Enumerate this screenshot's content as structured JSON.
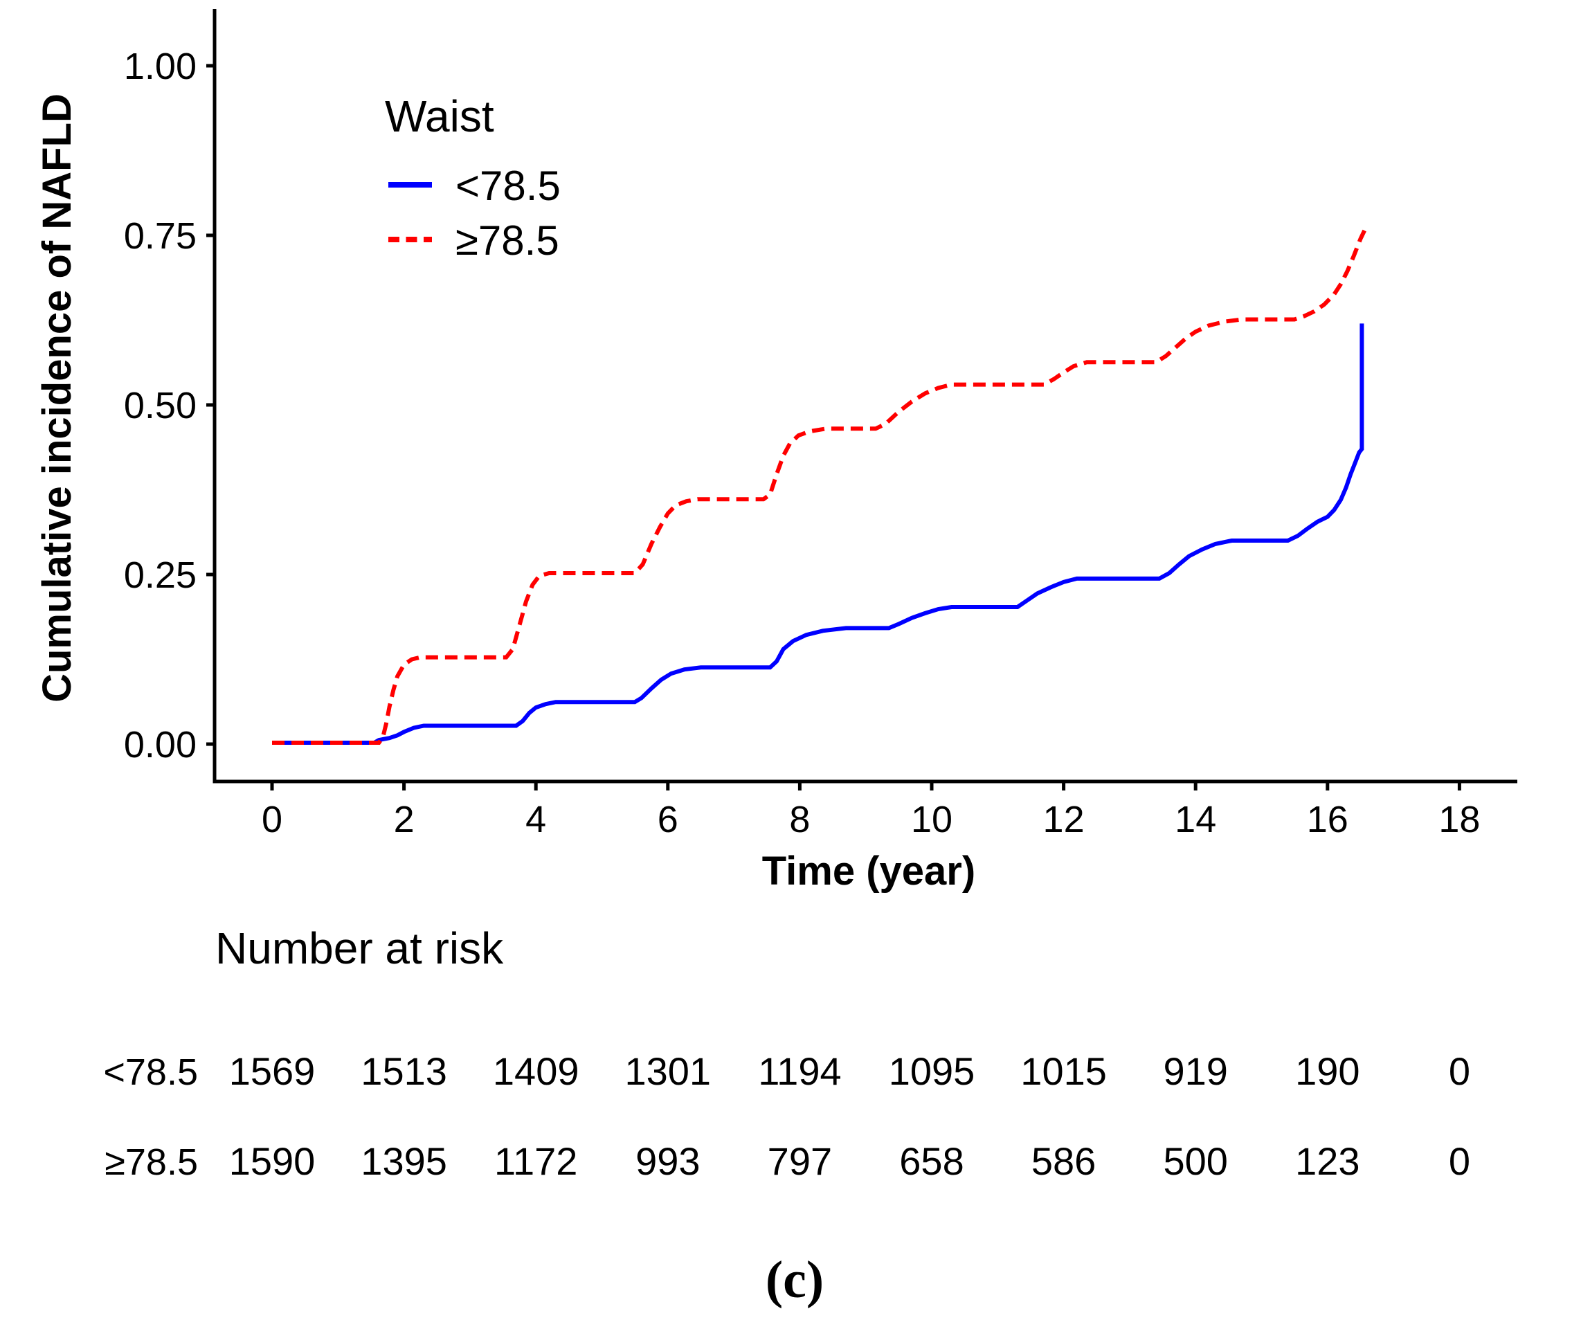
{
  "figure": {
    "caption": "(c)",
    "background_color": "#FFFFFF",
    "axis_color": "#000000"
  },
  "chart_data": {
    "type": "line",
    "subtype": "kaplan-meier-cumulative-incidence",
    "title": "",
    "xlabel": "Time (year)",
    "ylabel": "Cumulative incidence of NAFLD",
    "xlim": [
      0,
      18
    ],
    "ylim": [
      0,
      1
    ],
    "x_ticks": [
      0,
      2,
      4,
      6,
      8,
      10,
      12,
      14,
      16,
      18
    ],
    "y_ticks": [
      {
        "value": 0.0,
        "label": "0.00"
      },
      {
        "value": 0.25,
        "label": "0.25"
      },
      {
        "value": 0.5,
        "label": "0.50"
      },
      {
        "value": 0.75,
        "label": "0.75"
      },
      {
        "value": 1.0,
        "label": "1.00"
      }
    ],
    "grid": false,
    "legend": {
      "title": "Waist",
      "position": "top-left-inside",
      "items": [
        {
          "label": "<78.5",
          "color": "#0000FF",
          "line_style": "solid"
        },
        {
          "label": "≥78.5",
          "color": "#FF0000",
          "line_style": "dashed"
        }
      ]
    },
    "series": [
      {
        "name": "<78.5",
        "color": "#0000FF",
        "line_style": "solid",
        "points": [
          [
            0,
            0.002
          ],
          [
            1.55,
            0.002
          ],
          [
            1.62,
            0.006
          ],
          [
            1.78,
            0.009
          ],
          [
            1.9,
            0.013
          ],
          [
            2.0,
            0.018
          ],
          [
            2.15,
            0.024
          ],
          [
            2.3,
            0.027
          ],
          [
            3.7,
            0.027
          ],
          [
            3.8,
            0.034
          ],
          [
            3.9,
            0.046
          ],
          [
            4.0,
            0.054
          ],
          [
            4.15,
            0.059
          ],
          [
            4.3,
            0.062
          ],
          [
            5.5,
            0.062
          ],
          [
            5.6,
            0.068
          ],
          [
            5.75,
            0.082
          ],
          [
            5.9,
            0.095
          ],
          [
            6.05,
            0.104
          ],
          [
            6.25,
            0.11
          ],
          [
            6.5,
            0.113
          ],
          [
            7.55,
            0.113
          ],
          [
            7.65,
            0.122
          ],
          [
            7.75,
            0.14
          ],
          [
            7.9,
            0.152
          ],
          [
            8.1,
            0.161
          ],
          [
            8.35,
            0.167
          ],
          [
            8.7,
            0.171
          ],
          [
            9.35,
            0.171
          ],
          [
            9.5,
            0.177
          ],
          [
            9.7,
            0.186
          ],
          [
            9.9,
            0.193
          ],
          [
            10.1,
            0.199
          ],
          [
            10.3,
            0.202
          ],
          [
            11.3,
            0.202
          ],
          [
            11.45,
            0.212
          ],
          [
            11.6,
            0.222
          ],
          [
            11.8,
            0.231
          ],
          [
            12.0,
            0.239
          ],
          [
            12.2,
            0.244
          ],
          [
            13.45,
            0.244
          ],
          [
            13.6,
            0.252
          ],
          [
            13.75,
            0.265
          ],
          [
            13.9,
            0.277
          ],
          [
            14.1,
            0.287
          ],
          [
            14.3,
            0.295
          ],
          [
            14.55,
            0.3
          ],
          [
            15.4,
            0.3
          ],
          [
            15.55,
            0.307
          ],
          [
            15.7,
            0.318
          ],
          [
            15.85,
            0.328
          ],
          [
            16.0,
            0.335
          ],
          [
            16.1,
            0.345
          ],
          [
            16.2,
            0.36
          ],
          [
            16.28,
            0.378
          ],
          [
            16.35,
            0.398
          ],
          [
            16.42,
            0.415
          ],
          [
            16.48,
            0.43
          ],
          [
            16.52,
            0.435
          ],
          [
            16.52,
            0.62
          ]
        ]
      },
      {
        "name": "≥78.5",
        "color": "#FF0000",
        "line_style": "dashed",
        "points": [
          [
            0,
            0.002
          ],
          [
            1.62,
            0.002
          ],
          [
            1.68,
            0.01
          ],
          [
            1.73,
            0.03
          ],
          [
            1.78,
            0.055
          ],
          [
            1.84,
            0.08
          ],
          [
            1.9,
            0.1
          ],
          [
            2.0,
            0.117
          ],
          [
            2.12,
            0.125
          ],
          [
            2.25,
            0.128
          ],
          [
            3.55,
            0.128
          ],
          [
            3.65,
            0.14
          ],
          [
            3.75,
            0.175
          ],
          [
            3.85,
            0.21
          ],
          [
            3.95,
            0.235
          ],
          [
            4.05,
            0.248
          ],
          [
            4.2,
            0.252
          ],
          [
            5.5,
            0.252
          ],
          [
            5.62,
            0.265
          ],
          [
            5.75,
            0.295
          ],
          [
            5.88,
            0.32
          ],
          [
            6.0,
            0.34
          ],
          [
            6.12,
            0.352
          ],
          [
            6.28,
            0.358
          ],
          [
            6.45,
            0.361
          ],
          [
            7.45,
            0.361
          ],
          [
            7.55,
            0.368
          ],
          [
            7.65,
            0.398
          ],
          [
            7.75,
            0.425
          ],
          [
            7.85,
            0.443
          ],
          [
            7.98,
            0.455
          ],
          [
            8.15,
            0.461
          ],
          [
            8.4,
            0.465
          ],
          [
            9.15,
            0.465
          ],
          [
            9.3,
            0.472
          ],
          [
            9.5,
            0.49
          ],
          [
            9.7,
            0.505
          ],
          [
            9.9,
            0.517
          ],
          [
            10.1,
            0.525
          ],
          [
            10.3,
            0.53
          ],
          [
            11.7,
            0.53
          ],
          [
            11.85,
            0.538
          ],
          [
            12.0,
            0.548
          ],
          [
            12.15,
            0.557
          ],
          [
            12.35,
            0.563
          ],
          [
            13.4,
            0.563
          ],
          [
            13.55,
            0.572
          ],
          [
            13.7,
            0.585
          ],
          [
            13.85,
            0.598
          ],
          [
            14.0,
            0.608
          ],
          [
            14.2,
            0.617
          ],
          [
            14.45,
            0.623
          ],
          [
            14.7,
            0.626
          ],
          [
            15.5,
            0.626
          ],
          [
            15.65,
            0.631
          ],
          [
            15.8,
            0.638
          ],
          [
            15.95,
            0.648
          ],
          [
            16.1,
            0.663
          ],
          [
            16.2,
            0.678
          ],
          [
            16.3,
            0.697
          ],
          [
            16.4,
            0.72
          ],
          [
            16.5,
            0.745
          ],
          [
            16.56,
            0.757
          ]
        ]
      }
    ]
  },
  "risk_table": {
    "title": "Number at risk",
    "times": [
      0,
      2,
      4,
      6,
      8,
      10,
      12,
      14,
      16,
      18
    ],
    "rows": [
      {
        "label": "<78.5",
        "values": [
          1569,
          1513,
          1409,
          1301,
          1194,
          1095,
          1015,
          919,
          190,
          0
        ]
      },
      {
        "label": "≥78.5",
        "values": [
          1590,
          1395,
          1172,
          993,
          797,
          658,
          586,
          500,
          123,
          0
        ]
      }
    ]
  }
}
